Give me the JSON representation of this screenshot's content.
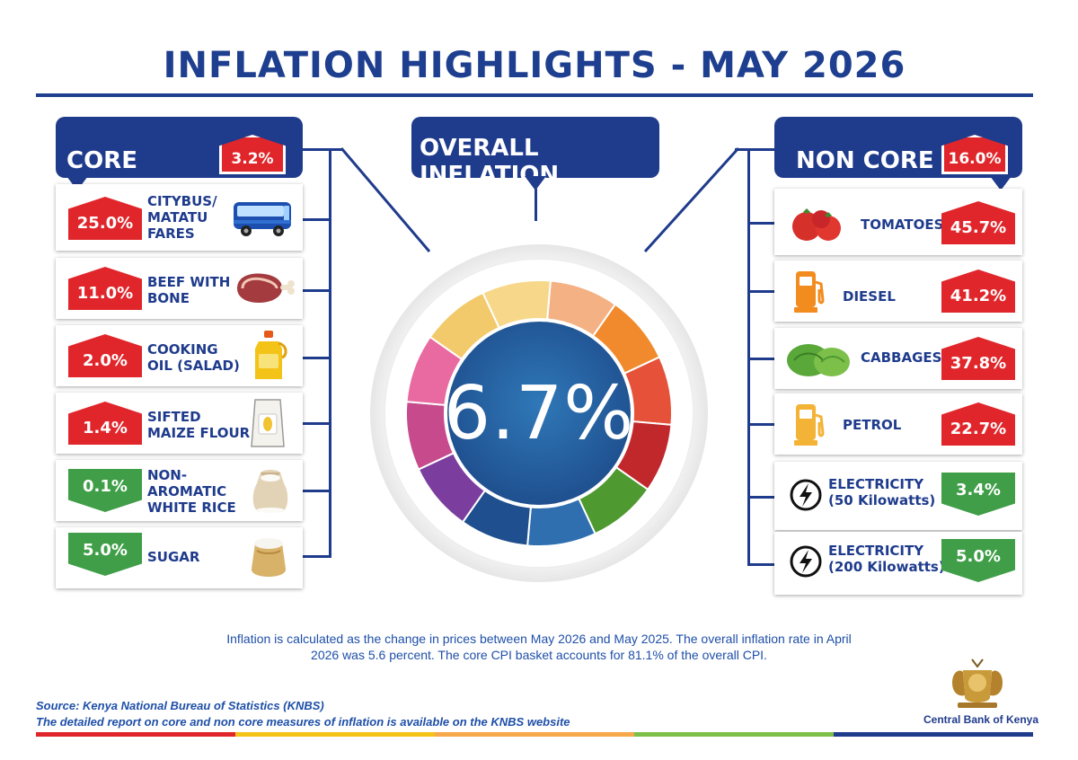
{
  "title": "INFLATION HIGHLIGHTS - MAY 2026",
  "core": {
    "label": "CORE",
    "value": "3.2%",
    "items": [
      {
        "value": "25.0%",
        "label": "CITYBUS/\nMATATU\nFARES",
        "direction": "up",
        "icon": "bus-icon"
      },
      {
        "value": "11.0%",
        "label": "BEEF WITH\nBONE",
        "direction": "up",
        "icon": "beef-icon"
      },
      {
        "value": "2.0%",
        "label": "COOKING\nOIL (SALAD)",
        "direction": "up",
        "icon": "oil-bottle-icon"
      },
      {
        "value": "1.4%",
        "label": "SIFTED\nMAIZE FLOUR",
        "direction": "up",
        "icon": "flour-bag-icon"
      },
      {
        "value": "0.1%",
        "label": "NON-\nAROMATIC\nWHITE RICE",
        "direction": "down",
        "icon": "rice-sack-icon"
      },
      {
        "value": "5.0%",
        "label": "SUGAR",
        "direction": "down",
        "icon": "sugar-sack-icon"
      }
    ]
  },
  "overall": {
    "label": "OVERALL INFLATION",
    "value": "6.7%"
  },
  "non_core": {
    "label": "NON CORE",
    "value": "16.0%",
    "items": [
      {
        "value": "45.7%",
        "label": "TOMATOES",
        "direction": "up",
        "icon": "tomato-icon"
      },
      {
        "value": "41.2%",
        "label": "DIESEL",
        "direction": "up",
        "icon": "fuel-pump-icon"
      },
      {
        "value": "37.8%",
        "label": "CABBAGES",
        "direction": "up",
        "icon": "cabbage-icon"
      },
      {
        "value": "22.7%",
        "label": "PETROL",
        "direction": "up",
        "icon": "fuel-pump-icon"
      },
      {
        "value": "3.4%",
        "label": "ELECTRICITY\n(50 Kilowatts)",
        "direction": "down",
        "icon": "lightning-icon"
      },
      {
        "value": "5.0%",
        "label": "ELECTRICITY\n(200 Kilowatts)",
        "direction": "down",
        "icon": "lightning-icon"
      }
    ]
  },
  "footnote": "Inflation is calculated as the change in prices between May 2026 and May 2025. The overall inflation rate in April 2026 was 5.6 percent. The core CPI basket accounts for 81.1% of the overall CPI.",
  "source_line1": "Source: Kenya National Bureau of Statistics (KNBS)",
  "source_line2": "The detailed report on core and non core measures of inflation is available on the KNBS website",
  "logo_text": "Central Bank of Kenya",
  "colors": {
    "navy": "#1f3b8c",
    "red": "#e0262b",
    "green": "#3f9e47"
  }
}
